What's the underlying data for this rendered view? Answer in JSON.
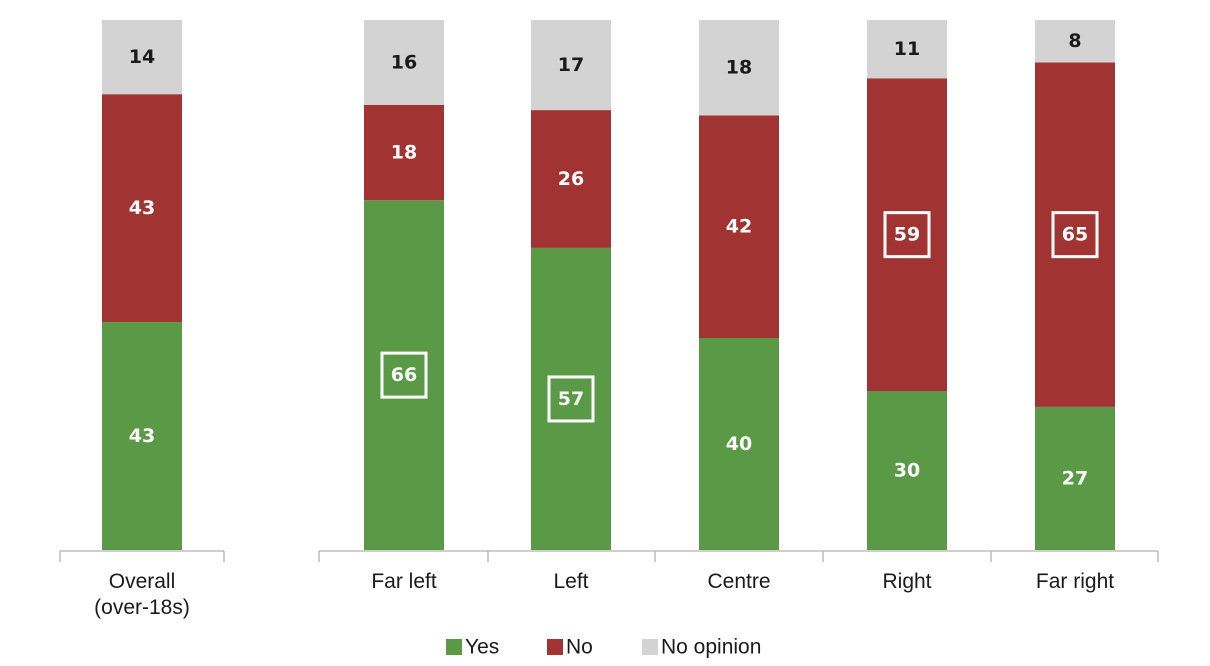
{
  "chart_data": {
    "type": "stacked-bar",
    "colors": {
      "yes": "#5a9a46",
      "no": "#a13433",
      "no_opinion": "#d3d3d3"
    },
    "ylim": [
      0,
      100
    ],
    "grid": false,
    "legend_position": "bottom-center",
    "series": [
      {
        "key": "yes",
        "name": "Yes"
      },
      {
        "key": "no",
        "name": "No"
      },
      {
        "key": "no_opinion",
        "name": "No opinion"
      }
    ],
    "categories": [
      {
        "label_lines": [
          "Overall",
          "(over-18s)"
        ],
        "yes": 43,
        "no": 43,
        "no_opinion": 14,
        "boxed": null
      },
      {
        "label_lines": [
          "Far left"
        ],
        "yes": 66,
        "no": 18,
        "no_opinion": 16,
        "boxed": "yes"
      },
      {
        "label_lines": [
          "Left"
        ],
        "yes": 57,
        "no": 26,
        "no_opinion": 17,
        "boxed": "yes"
      },
      {
        "label_lines": [
          "Centre"
        ],
        "yes": 40,
        "no": 42,
        "no_opinion": 18,
        "boxed": null
      },
      {
        "label_lines": [
          "Right"
        ],
        "yes": 30,
        "no": 59,
        "no_opinion": 11,
        "boxed": "no"
      },
      {
        "label_lines": [
          "Far right"
        ],
        "yes": 27,
        "no": 65,
        "no_opinion": 8,
        "boxed": "no"
      }
    ]
  }
}
